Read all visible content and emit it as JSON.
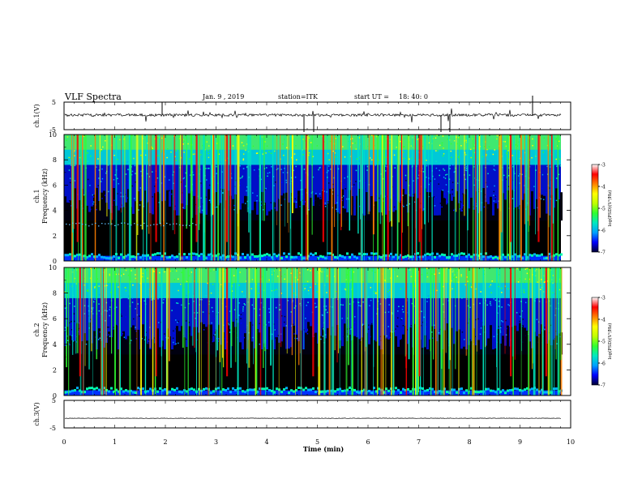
{
  "header": {
    "title": "VLF Spectra",
    "date": "Jan. 9 , 2019",
    "station": "station=ITK",
    "start_label": "start UT =",
    "start_time": "18: 40: 0"
  },
  "chart_data": [
    {
      "type": "line",
      "panel": "waveform",
      "ylabel": "ch.1(V)",
      "ylim": [
        -5,
        5
      ],
      "yticks": [
        "5",
        "-5"
      ],
      "xlim": [
        0,
        10
      ],
      "baseline": 0.3
    },
    {
      "type": "heatmap",
      "panel": "spectrogram",
      "ylabel_line1": "ch.1",
      "ylabel_line2": "Frequency (kHz)",
      "ylim": [
        0,
        10
      ],
      "yticks": [
        "0",
        "2",
        "4",
        "6",
        "8",
        "10"
      ],
      "xlim": [
        0,
        10
      ],
      "colorbar": {
        "label": "log(PSD)(V²/Hz)",
        "range": [
          -7,
          -3
        ],
        "ticks": [
          "-3",
          "-4",
          "-5",
          "-6",
          "-7"
        ],
        "colors": [
          "#000033",
          "#0000ff",
          "#00a0ff",
          "#00e8c0",
          "#30ff30",
          "#c0ff00",
          "#ffff00",
          "#ff8000",
          "#ff0000",
          "#ffffff"
        ]
      }
    },
    {
      "type": "heatmap",
      "panel": "spectrogram",
      "ylabel_line1": "ch.2",
      "ylabel_line2": "Frequency (kHz)",
      "ylim": [
        0,
        10
      ],
      "yticks": [
        "0",
        "2",
        "4",
        "6",
        "8",
        "10"
      ],
      "xlim": [
        0,
        10
      ],
      "colorbar": {
        "label": "log(PSD)(V²/Hz)",
        "range": [
          -7,
          -3
        ],
        "ticks": [
          "-3",
          "-4",
          "-5",
          "-6",
          "-7"
        ],
        "colors": [
          "#000033",
          "#0000ff",
          "#00a0ff",
          "#00e8c0",
          "#30ff30",
          "#c0ff00",
          "#ffff00",
          "#ff8000",
          "#ff0000",
          "#ffffff"
        ]
      }
    },
    {
      "type": "line",
      "panel": "waveform",
      "ylabel": "ch.3(V)",
      "ylim": [
        -5,
        5
      ],
      "yticks": [
        "5",
        "-5"
      ],
      "xlim": [
        0,
        10
      ],
      "baseline": -1.5
    }
  ],
  "xaxis": {
    "label": "Time (min)",
    "ticks": [
      "0",
      "1",
      "2",
      "3",
      "4",
      "5",
      "6",
      "7",
      "8",
      "9",
      "10"
    ]
  }
}
